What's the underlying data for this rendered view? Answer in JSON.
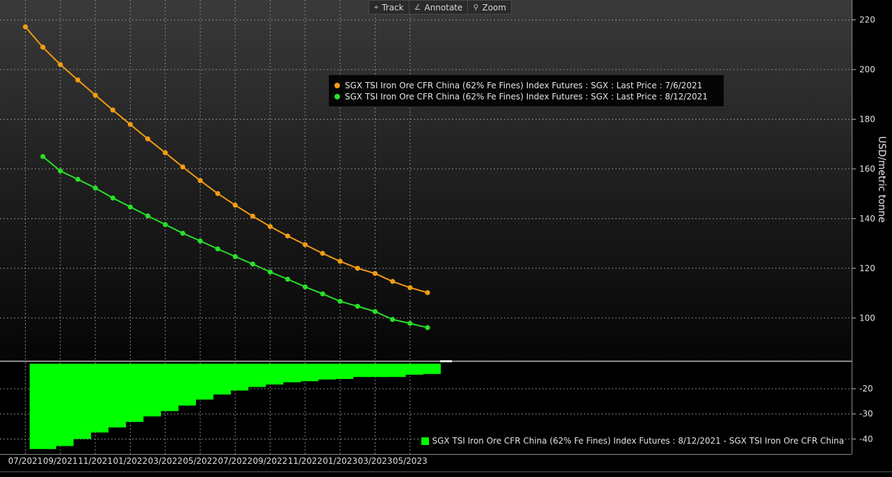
{
  "toolbar": {
    "buttons": [
      {
        "label": "Track",
        "icon": "crosshair-icon"
      },
      {
        "label": "Annotate",
        "icon": "pencil-icon"
      },
      {
        "label": "Zoom",
        "icon": "magnifier-icon"
      }
    ]
  },
  "legend": {
    "series1": "SGX TSI Iron Ore CFR China (62% Fe Fines) Index Futures : SGX : Last Price : 7/6/2021",
    "series2": "SGX TSI Iron Ore CFR China (62% Fe Fines) Index Futures : SGX : Last Price : 8/12/2021",
    "diff": "SGX TSI Iron Ore CFR China (62% Fe Fines) Index Futures : 8/12/2021 - SGX TSI Iron Ore CFR China"
  },
  "colors": {
    "series1": "#f39c12",
    "series2": "#28e028",
    "bars": "#00ff00",
    "background": "#000000",
    "grid": "#8a8a8a"
  },
  "chart_data": [
    {
      "type": "line",
      "ylabel": "USD/metric tonne",
      "ylim": [
        83,
        228
      ],
      "y_ticks": [
        100,
        120,
        140,
        160,
        180,
        200,
        220
      ],
      "x_tick_labels": [
        "07/2021",
        "09/2021",
        "11/2021",
        "01/2022",
        "03/2022",
        "05/2022",
        "07/2022",
        "09/2022",
        "11/2022",
        "01/2023",
        "03/2023",
        "05/2023"
      ],
      "grid": true,
      "legend_position": "top-center",
      "series": [
        {
          "name": "SGX TSI Iron Ore CFR China (62% Fe Fines) Index Futures : SGX : Last Price : 7/6/2021",
          "x": [
            "07/2021",
            "08/2021",
            "09/2021",
            "10/2021",
            "11/2021",
            "12/2021",
            "01/2022",
            "02/2022",
            "03/2022",
            "04/2022",
            "05/2022",
            "06/2022",
            "07/2022",
            "08/2022",
            "09/2022",
            "10/2022",
            "11/2022",
            "12/2022",
            "01/2023",
            "02/2023",
            "03/2023",
            "04/2023",
            "05/2023",
            "06/2023"
          ],
          "values": [
            217.2,
            209.0,
            202.0,
            195.8,
            189.7,
            183.7,
            177.9,
            172.1,
            166.5,
            160.8,
            155.3,
            150.1,
            145.4,
            141.0,
            136.8,
            133.0,
            129.5,
            126.0,
            122.8,
            120.0,
            117.9,
            114.7,
            112.2,
            110.2
          ]
        },
        {
          "name": "SGX TSI Iron Ore CFR China (62% Fe Fines) Index Futures : SGX : Last Price : 8/12/2021",
          "x": [
            "08/2021",
            "09/2021",
            "10/2021",
            "11/2021",
            "12/2021",
            "01/2022",
            "02/2022",
            "03/2022",
            "04/2022",
            "05/2022",
            "06/2022",
            "07/2022",
            "08/2022",
            "09/2022",
            "10/2022",
            "11/2022",
            "12/2022",
            "01/2023",
            "02/2023",
            "03/2023",
            "04/2023",
            "05/2023",
            "06/2023"
          ],
          "values": [
            165.0,
            159.2,
            155.8,
            152.3,
            148.3,
            144.7,
            141.1,
            137.6,
            134.1,
            131.0,
            127.8,
            124.7,
            121.7,
            118.5,
            115.6,
            112.5,
            109.7,
            106.7,
            104.7,
            102.6,
            99.4,
            97.8,
            96.1
          ]
        }
      ]
    },
    {
      "type": "bar",
      "series_name": "SGX TSI Iron Ore CFR China (62% Fe Fines) Index Futures : 8/12/2021 - SGX TSI Iron Ore CFR China",
      "categories": [
        "08/2021",
        "09/2021",
        "10/2021",
        "11/2021",
        "12/2021",
        "01/2022",
        "02/2022",
        "03/2022",
        "04/2022",
        "05/2022",
        "06/2022",
        "07/2022",
        "08/2022",
        "09/2022",
        "10/2022",
        "11/2022",
        "12/2022",
        "01/2023",
        "02/2023",
        "03/2023",
        "04/2023",
        "05/2023",
        "06/2023"
      ],
      "values": [
        -44.0,
        -42.8,
        -40.0,
        -37.4,
        -35.4,
        -33.2,
        -31.0,
        -28.9,
        -26.7,
        -24.3,
        -22.3,
        -20.7,
        -19.3,
        -18.3,
        -17.4,
        -17.0,
        -16.3,
        -16.1,
        -15.3,
        -15.3,
        -15.3,
        -14.4,
        -14.1
      ],
      "ylim": [
        -46,
        -10
      ],
      "y_ticks": [
        -20,
        -30,
        -40
      ],
      "grid": true,
      "legend_position": "bottom-right"
    }
  ]
}
